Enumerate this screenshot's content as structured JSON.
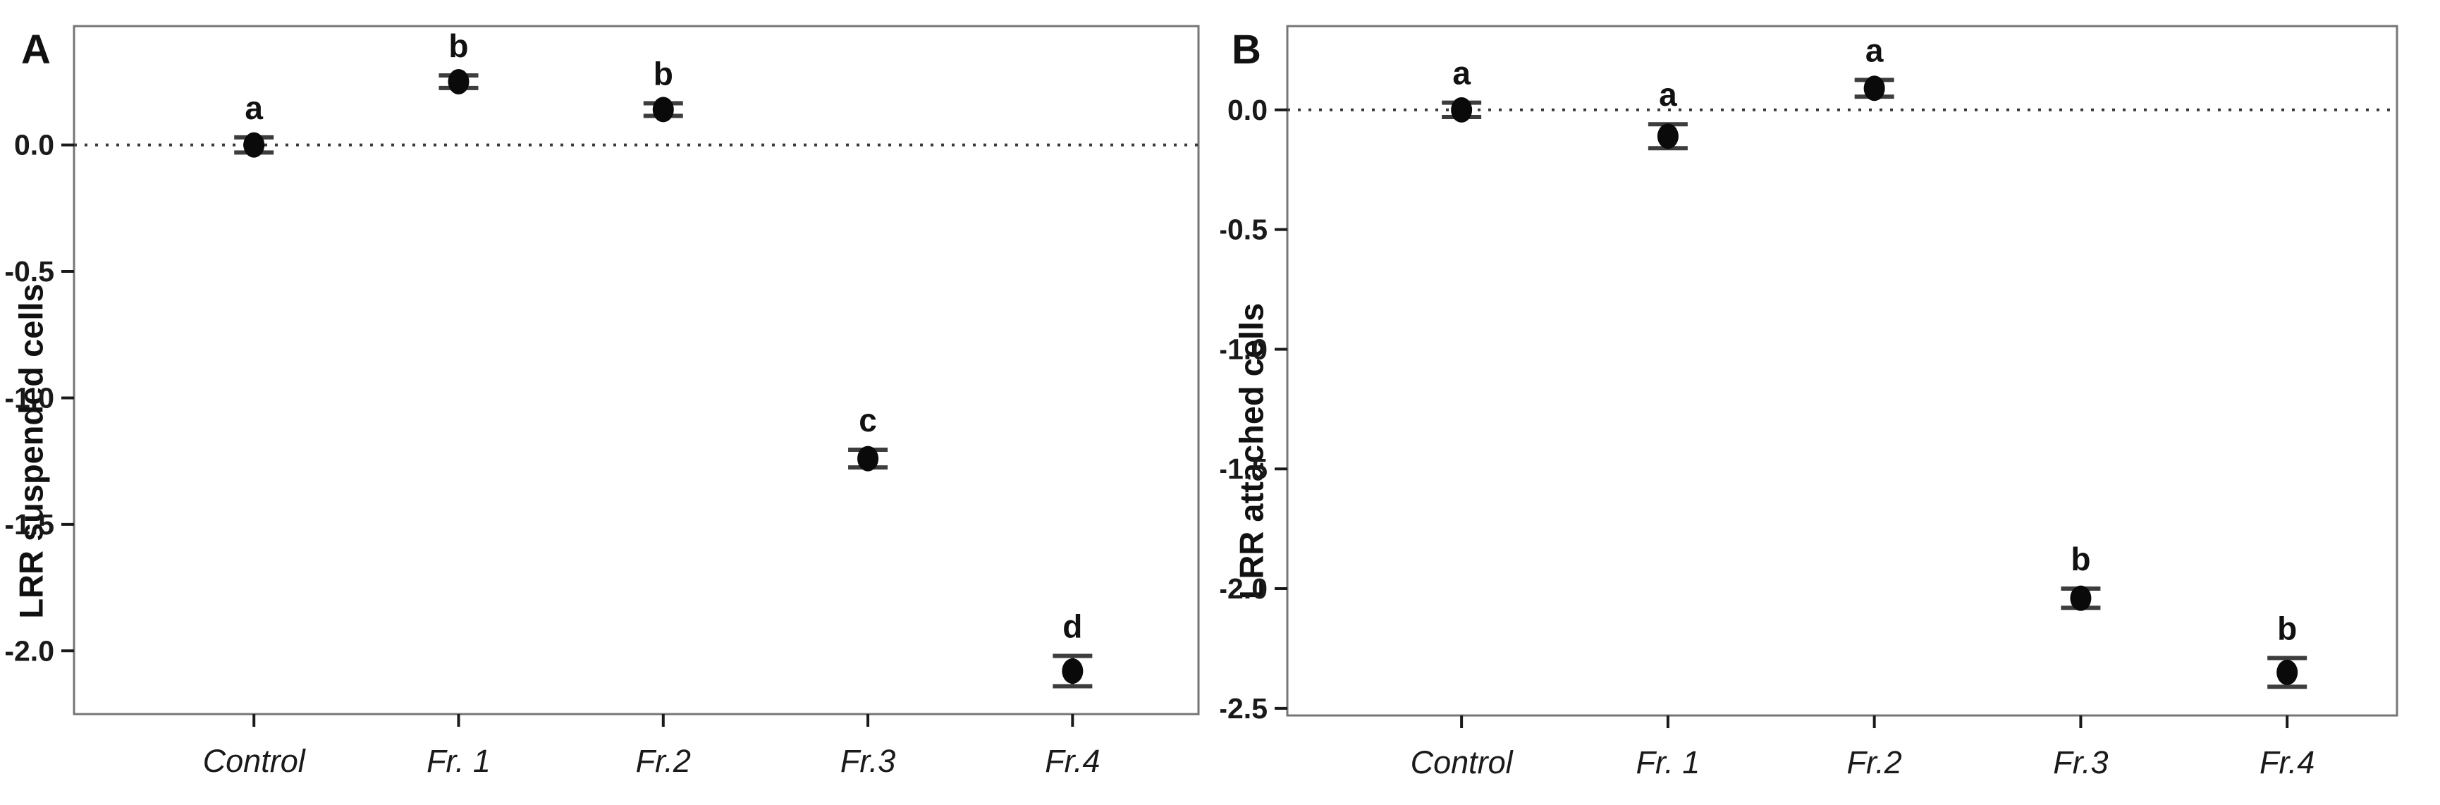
{
  "figure": {
    "background": "#ffffff",
    "border_color": "#767676",
    "tick_color": "#1a1a1a",
    "point_color": "#0a0a0a",
    "errorbar_color": "#3d3d3d",
    "ref_line_color": "#3a3a3a"
  },
  "chart_data": [
    {
      "type": "scatter",
      "panel_label": "A",
      "ylabel": "LRR suspended cells",
      "xlabel": "",
      "categories": [
        "Control",
        "Fr. 1",
        "Fr.2",
        "Fr.3",
        "Fr.4"
      ],
      "values": [
        0.0,
        0.25,
        0.14,
        -1.24,
        -2.08
      ],
      "errors": [
        0.03,
        0.025,
        0.025,
        0.035,
        0.06
      ],
      "sig_letters": [
        "a",
        "b",
        "b",
        "c",
        "d"
      ],
      "ytick_values": [
        0.0,
        -0.5,
        -1.0,
        -1.5,
        -2.0
      ],
      "ytick_labels": [
        "0.0",
        "-0.5",
        "-1.0",
        "-1.5",
        "-2.0"
      ],
      "ylim": [
        0.47,
        -2.25
      ],
      "ref_line": 0,
      "grid": false,
      "legend": null
    },
    {
      "type": "scatter",
      "panel_label": "B",
      "ylabel": "LRR attached cells",
      "xlabel": "",
      "categories": [
        "Control",
        "Fr. 1",
        "Fr.2",
        "Fr.3",
        "Fr.4"
      ],
      "values": [
        0.0,
        -0.11,
        0.09,
        -2.04,
        -2.35
      ],
      "errors": [
        0.03,
        0.05,
        0.035,
        0.04,
        0.06
      ],
      "sig_letters": [
        "a",
        "a",
        "a",
        "b",
        "b"
      ],
      "ytick_values": [
        0.0,
        -0.5,
        -1.0,
        -1.5,
        -2.0,
        -2.5
      ],
      "ytick_labels": [
        "0.0",
        "-0.5",
        "-1.0",
        "-1.5",
        "-2.0",
        "-2.5"
      ],
      "ylim": [
        0.35,
        -2.53
      ],
      "ref_line": 0,
      "grid": false,
      "legend": null
    }
  ]
}
